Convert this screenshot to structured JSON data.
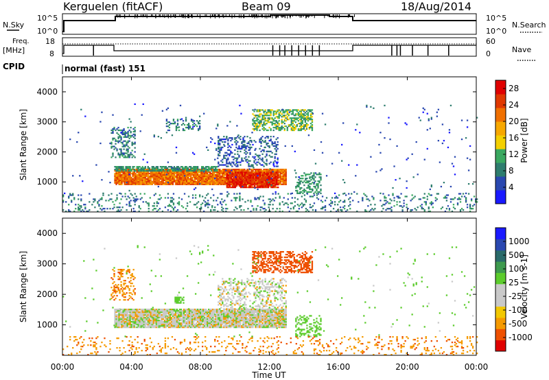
{
  "header": {
    "title": "Kerguelen (fitACF)",
    "beam": "Beam 09",
    "date": "18/Aug/2014"
  },
  "left_labels": {
    "nsky": "N.Sky",
    "freq": "Freq.",
    "freq_unit": "[MHz]",
    "cpid": "CPID",
    "cpid_value": "normal (fast) 151"
  },
  "right_labels": {
    "nsearch": "N.Search",
    "nave": "Nave"
  },
  "noise_panel": {
    "left_ticks": [
      "10^5",
      "10^0"
    ],
    "right_ticks": [
      "10^5",
      "10^0"
    ]
  },
  "freq_panel": {
    "left_ticks": [
      "18",
      "8"
    ],
    "right_ticks": [
      "60",
      "0"
    ]
  },
  "x_axis": {
    "label": "Time UT",
    "ticks": [
      "00:00",
      "04:00",
      "08:00",
      "12:00",
      "16:00",
      "20:00",
      "00:00"
    ]
  },
  "colors": {
    "scale": [
      "#1a1aff",
      "#2a48b0",
      "#2e7d6e",
      "#3aa860",
      "#6cc840",
      "#c8c8c8",
      "#f4d000",
      "#f7a800",
      "#f07000",
      "#e03800",
      "#e00000"
    ],
    "velocity": [
      "#e00000",
      "#ee5000",
      "#f59a00",
      "#f2c800",
      "#c9c9c9",
      "#c9c9c9",
      "#5ccc2c",
      "#3e9a4e",
      "#2a6a6a",
      "#2a48b0",
      "#1a1aff"
    ],
    "ground": "#bdbdbd"
  },
  "chart_data": [
    {
      "type": "heatmap",
      "ylabel": "Slant Range [km]",
      "y_ticks": [
        "1000",
        "2000",
        "3000",
        "4000"
      ],
      "ylim": [
        0,
        4500
      ],
      "colorbar_label": "Power [dB]",
      "colorbar_ticks": [
        "4",
        "8",
        "12",
        "16",
        "20",
        "24",
        "28"
      ],
      "colorbar_range": [
        0,
        30
      ],
      "blobs": [
        {
          "t0": 3.0,
          "t1": 13.0,
          "r0": 900,
          "r1": 1400,
          "value": 22,
          "density": 0.95
        },
        {
          "t0": 9.5,
          "t1": 12.5,
          "r0": 800,
          "r1": 1300,
          "value": 26,
          "density": 0.9
        },
        {
          "t0": 3.0,
          "t1": 9.0,
          "r0": 1350,
          "r1": 1500,
          "value": 10,
          "density": 0.7
        },
        {
          "t0": 11.0,
          "t1": 14.5,
          "r0": 2700,
          "r1": 3400,
          "value": 12,
          "density": 0.55
        },
        {
          "t0": 2.8,
          "t1": 4.2,
          "r0": 1800,
          "r1": 2800,
          "value": 8,
          "density": 0.35
        },
        {
          "t0": 6.0,
          "t1": 8.0,
          "r0": 2700,
          "r1": 3100,
          "value": 8,
          "density": 0.3
        },
        {
          "t0": 9.0,
          "t1": 12.5,
          "r0": 1500,
          "r1": 2500,
          "value": 6,
          "density": 0.3
        },
        {
          "t0": 13.5,
          "t1": 15.0,
          "r0": 600,
          "r1": 1300,
          "value": 10,
          "density": 0.45
        },
        {
          "t0": 0.0,
          "t1": 24.0,
          "r0": 0,
          "r1": 600,
          "value": 8,
          "density": 0.15
        },
        {
          "t0": 0.0,
          "t1": 24.0,
          "r0": 600,
          "r1": 3600,
          "value": 5,
          "density": 0.012
        }
      ]
    },
    {
      "type": "heatmap",
      "ylabel": "Slant Range [km]",
      "y_ticks": [
        "1000",
        "2000",
        "3000",
        "4000"
      ],
      "ylim": [
        0,
        4500
      ],
      "colorbar_label": "Velocity [m s-1]",
      "colorbar_ticks": [
        "1000",
        "500",
        "100",
        "25",
        "-25",
        "-100",
        "-500",
        "-1000"
      ],
      "blobs": [
        {
          "t0": 3.0,
          "t1": 13.0,
          "r0": 900,
          "r1": 1500,
          "value": 0,
          "density": 0.95
        },
        {
          "t0": 11.0,
          "t1": 14.5,
          "r0": 2700,
          "r1": 3400,
          "value": -300,
          "density": 0.5
        },
        {
          "t0": 9.0,
          "t1": 13.0,
          "r0": 1500,
          "r1": 2500,
          "value": 0,
          "density": 0.35
        },
        {
          "t0": 2.8,
          "t1": 4.2,
          "r0": 1800,
          "r1": 2800,
          "value": -80,
          "density": 0.3
        },
        {
          "t0": 13.5,
          "t1": 15.0,
          "r0": 600,
          "r1": 1300,
          "value": 60,
          "density": 0.35
        },
        {
          "t0": 6.5,
          "t1": 7.0,
          "r0": 1700,
          "r1": 1900,
          "value": 60,
          "density": 0.8
        },
        {
          "t0": 0.0,
          "t1": 24.0,
          "r0": 0,
          "r1": 600,
          "value": -80,
          "density": 0.12
        },
        {
          "t0": 0.0,
          "t1": 24.0,
          "r0": 600,
          "r1": 3600,
          "value": 50,
          "density": 0.01
        }
      ]
    }
  ]
}
